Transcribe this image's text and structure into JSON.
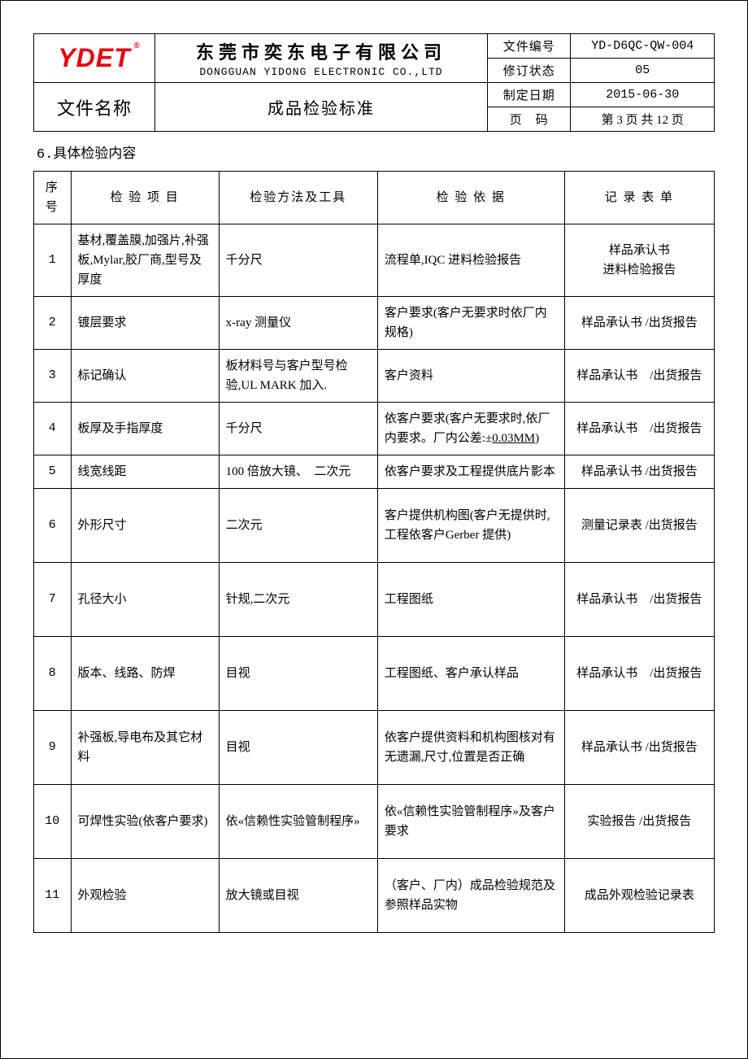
{
  "colors": {
    "text": "#000000",
    "logo": "#e60012",
    "border": "#000000",
    "background": "#ffffff"
  },
  "header": {
    "logo_text": "YDET",
    "logo_reg": "®",
    "company_cn": "东莞市奕东电子有限公司",
    "company_en": "DONGGUAN YIDONG ELECTRONIC CO.,LTD",
    "doc_name_label": "文件名称",
    "doc_title": "成品检验标准",
    "meta": {
      "doc_no_label": "文件编号",
      "doc_no_value": "YD-D6QC-QW-004",
      "rev_label": "修订状态",
      "rev_value": "05",
      "date_label": "制定日期",
      "date_value": "2015-06-30",
      "page_label": "页　码",
      "page_value": "第 3 页 共 12 页"
    }
  },
  "section_title": "6.具体检验内容",
  "table": {
    "headers": {
      "no": "序号",
      "item": "检 验 项 目",
      "method": "检验方法及工具",
      "basis": "检 验 依 据",
      "record": "记 录 表 单"
    },
    "rows": [
      {
        "no": "1",
        "item": "基材,覆盖膜,加强片,补强板,Mylar,胶厂商,型号及厚度",
        "method": "千分尺",
        "basis": "流程单,IQC 进料检验报告",
        "record": "样品承认书\n进料检验报告"
      },
      {
        "no": "2",
        "item": "镀层要求",
        "method": "x-ray 测量仪",
        "basis": "客户要求(客户无要求时依厂内规格)",
        "record": "样品承认书 /出货报告"
      },
      {
        "no": "3",
        "item": "标记确认",
        "method": "板材料号与客户型号检验,UL MARK 加入.",
        "basis": "客户资料",
        "record": "样品承认书　/出货报告"
      },
      {
        "no": "4",
        "item": "板厚及手指厚度",
        "method": "千分尺",
        "basis_pre": "依客户要求(客户无要求时,依厂内要求。厂内公差:±",
        "basis_under": "0.03MM",
        "basis_post": ")",
        "record": "样品承认书　/出货报告"
      },
      {
        "no": "5",
        "item": "线宽线距",
        "method": "100 倍放大镜、　二次元",
        "basis": "依客户要求及工程提供底片影本",
        "record": "样品承认书 /出货报告"
      },
      {
        "no": "6",
        "item": "外形尺寸",
        "method": "二次元",
        "basis": "客户提供机构图(客户无提供时,工程依客户Gerber 提供)",
        "record": "测量记录表 /出货报告"
      },
      {
        "no": "7",
        "item": "孔径大小",
        "method": "针规,二次元",
        "basis": "工程图纸",
        "record": "样品承认书　/出货报告"
      },
      {
        "no": "8",
        "item": "版本、线路、防焊",
        "method": "目视",
        "basis": "工程图纸、客户承认样品",
        "record": "样品承认书　/出货报告"
      },
      {
        "no": "9",
        "item": "补强板,导电布及其它材料",
        "method": "目视",
        "basis": "依客户提供资料和机构图核对有无遗漏,尺寸,位置是否正确",
        "record": "样品承认书 /出货报告"
      },
      {
        "no": "10",
        "item": "可焊性实验(依客户要求)",
        "method": "依«信赖性实验管制程序»",
        "basis": "依«信赖性实验管制程序»及客户要求",
        "record": "实验报告 /出货报告"
      },
      {
        "no": "11",
        "item": "外观检验",
        "method": "放大镜或目视",
        "basis": "（客户、厂内）成品检验规范及参照样品实物",
        "record": "成品外观检验记录表"
      }
    ]
  }
}
